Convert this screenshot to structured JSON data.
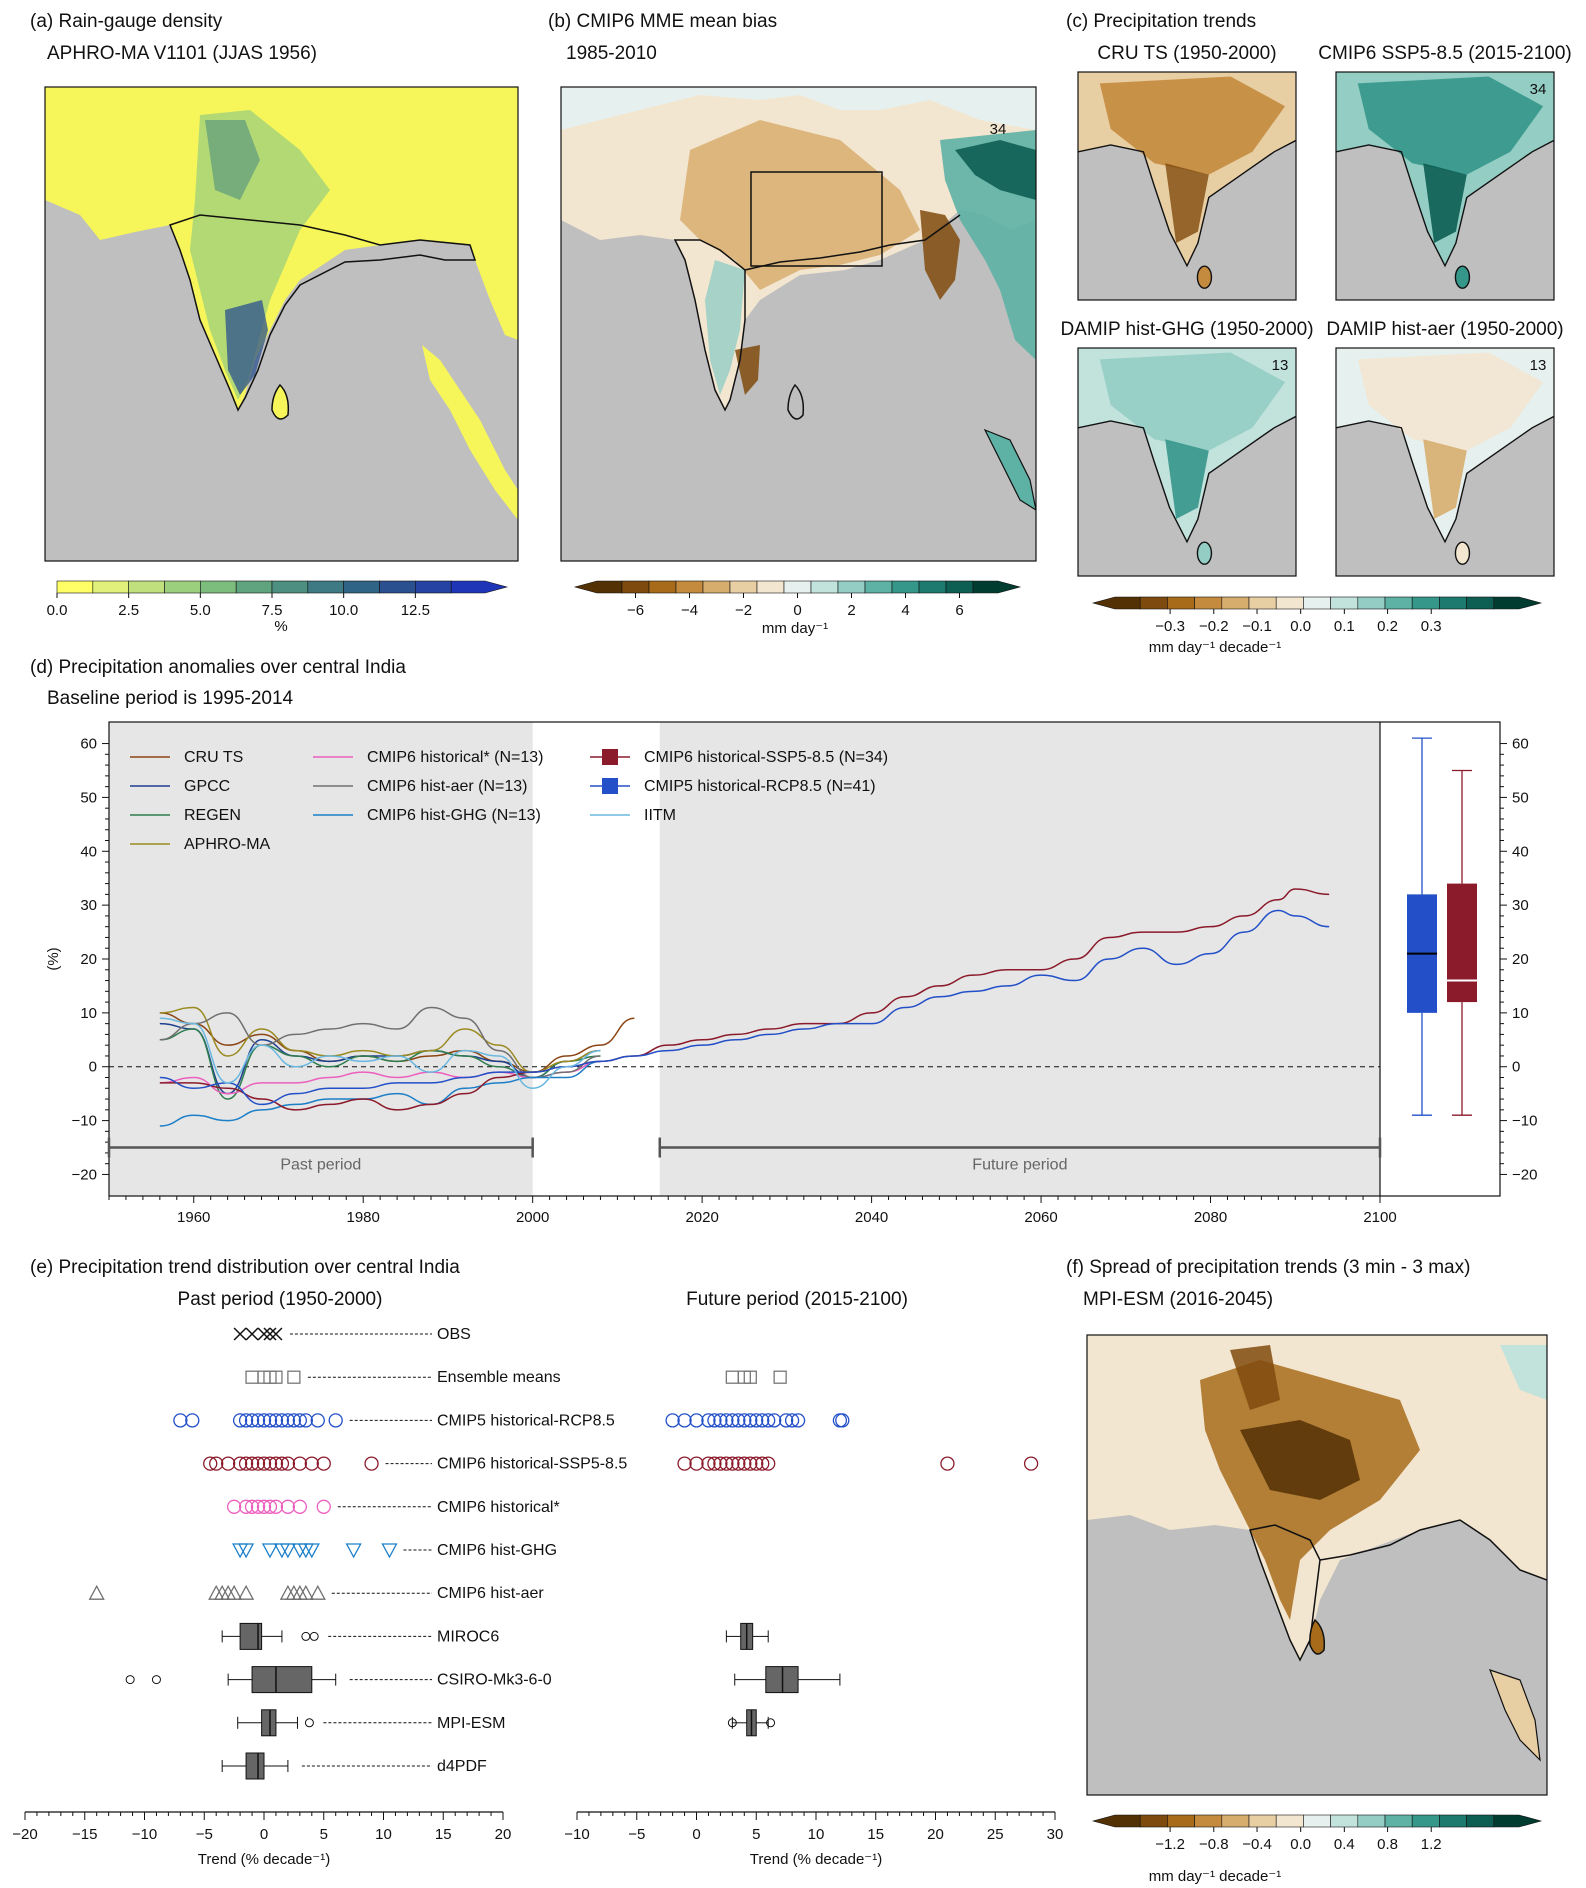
{
  "colors": {
    "yellow_fill": "#f6f65a",
    "land_gray": "#bfbfbf",
    "shade_gray": "#e6e6e6",
    "cmip6": "#8b1a2b",
    "cmip5": "#2350c8",
    "pink": "#ec5fbe",
    "ghg": "#1c7fc8",
    "aer": "#707070"
  },
  "panel_a": {
    "title": "(a) Rain-gauge density",
    "subtitle": "APHRO-MA V1101 (JJAS 1956)",
    "colorbar": {
      "ticks": [
        "0.0",
        "2.5",
        "5.0",
        "7.5",
        "10.0",
        "12.5"
      ],
      "unit": "%",
      "colors": [
        "#ffff66",
        "#e0f07a",
        "#bfe07c",
        "#9ccf7d",
        "#7cbd7d",
        "#5fa47e",
        "#4d8f80",
        "#3d7a84",
        "#306487",
        "#2a508f",
        "#2543a3",
        "#1f35b8"
      ]
    }
  },
  "panel_b": {
    "title": "(b) CMIP6 MME mean bias",
    "subtitle": "1985-2010",
    "label": "34",
    "colorbar": {
      "ticks": [
        "−6",
        "−4",
        "−2",
        "0",
        "2",
        "4",
        "6"
      ],
      "unit": "mm day⁻¹"
    }
  },
  "panel_c": {
    "title": "(c) Precipitation trends",
    "maps": [
      {
        "title": "CRU TS (1950-2000)",
        "label": ""
      },
      {
        "title": "CMIP6 SSP5-8.5 (2015-2100)",
        "label": "34"
      },
      {
        "title": "DAMIP hist-GHG (1950-2000)",
        "label": "13"
      },
      {
        "title": "DAMIP hist-aer (1950-2000)",
        "label": "13"
      }
    ],
    "colorbar": {
      "ticks": [
        "−0.3",
        "−0.2",
        "−0.1",
        "0.0",
        "0.1",
        "0.2",
        "0.3"
      ],
      "unit": "mm day⁻¹ decade⁻¹"
    }
  },
  "diverging_colors": [
    "#543005",
    "#7f4a0d",
    "#a76b1a",
    "#c48a3e",
    "#d7ad6e",
    "#e8cfa3",
    "#f3e6d0",
    "#e6f0ee",
    "#c2e2dc",
    "#93cdc4",
    "#5eb1a5",
    "#35968a",
    "#1d7a6f",
    "#0d5e53",
    "#003c30"
  ],
  "panel_d": {
    "title": "(d) Precipitation anomalies over central India",
    "subtitle": "Baseline period is 1995-2014",
    "ylabel": "(%)",
    "past_label": "Past period",
    "future_label": "Future period",
    "legend": [
      {
        "name": "CRU TS",
        "color": "#8b4513",
        "kind": "line"
      },
      {
        "name": "GPCC",
        "color": "#1f3f8f",
        "kind": "line"
      },
      {
        "name": "REGEN",
        "color": "#2e7d4f",
        "kind": "line"
      },
      {
        "name": "APHRO-MA",
        "color": "#9a8a20",
        "kind": "line"
      },
      {
        "name": "CMIP6 historical* (N=13)",
        "color": "#ec5fbe",
        "kind": "line"
      },
      {
        "name": "CMIP6 hist-aer (N=13)",
        "color": "#707070",
        "kind": "line"
      },
      {
        "name": "CMIP6 hist-GHG (N=13)",
        "color": "#1c7fc8",
        "kind": "line"
      },
      {
        "name": "CMIP6 historical-SSP5-8.5 (N=34)",
        "color": "#8b1a2b",
        "kind": "box"
      },
      {
        "name": "CMIP5 historical-RCP8.5 (N=41)",
        "color": "#2350c8",
        "kind": "box"
      },
      {
        "name": "IITM",
        "color": "#6ab8e0",
        "kind": "line"
      }
    ]
  },
  "panel_e": {
    "title": "(e) Precipitation trend distribution over central India",
    "past_title": "Past period (1950-2000)",
    "future_title": "Future period (2015-2100)",
    "xlabel": "Trend (% decade⁻¹)",
    "rows": [
      "OBS",
      "Ensemble means",
      "CMIP5 historical-RCP8.5",
      "CMIP6 historical-SSP5-8.5",
      "CMIP6 historical*",
      "CMIP6 hist-GHG",
      "CMIP6 hist-aer",
      "MIROC6",
      "CSIRO-Mk3-6-0",
      "MPI-ESM",
      "d4PDF"
    ]
  },
  "panel_f": {
    "title": "(f) Spread of precipitation trends (3 min - 3 max)",
    "subtitle": "MPI-ESM (2016-2045)",
    "colorbar": {
      "ticks": [
        "−1.2",
        "−0.8",
        "−0.4",
        "0.0",
        "0.4",
        "0.8",
        "1.2"
      ],
      "unit": "mm day⁻¹ decade⁻¹"
    }
  },
  "chart_data": [
    {
      "type": "line",
      "panel": "d",
      "xlim": [
        1950,
        2100
      ],
      "ylim": [
        -20,
        60
      ],
      "xticks": [
        1960,
        1980,
        2000,
        2020,
        2040,
        2060,
        2080,
        2100
      ],
      "yticks": [
        -20,
        -10,
        0,
        10,
        20,
        30,
        40,
        50,
        60
      ],
      "shaded_periods": [
        [
          1950,
          2000
        ],
        [
          2015,
          2100
        ]
      ],
      "series": [
        {
          "name": "CRU TS",
          "x": [
            1956,
            1960,
            1964,
            1968,
            1972,
            1976,
            1980,
            1984,
            1988,
            1992,
            1996,
            2000,
            2004,
            2008,
            2012
          ],
          "y": [
            10,
            8,
            4,
            6,
            3,
            1,
            2,
            1,
            2,
            3,
            1,
            -1,
            2,
            4,
            9
          ]
        },
        {
          "name": "GPCC",
          "x": [
            1956,
            1960,
            1964,
            1968,
            1972,
            1976,
            1980,
            1984,
            1988,
            1992,
            1996,
            2000,
            2004,
            2008
          ],
          "y": [
            8,
            7,
            -5,
            5,
            2,
            1,
            2,
            2,
            3,
            2,
            1,
            -2,
            1,
            3
          ]
        },
        {
          "name": "REGEN",
          "x": [
            1956,
            1960,
            1964,
            1968,
            1972,
            1976,
            1980,
            1984,
            1988,
            1992,
            1996,
            2000,
            2004,
            2008
          ],
          "y": [
            5,
            7,
            -6,
            4,
            2,
            0,
            2,
            1,
            3,
            2,
            0,
            -2,
            1,
            2
          ]
        },
        {
          "name": "APHRO-MA",
          "x": [
            1956,
            1960,
            1964,
            1968,
            1972,
            1976,
            1980,
            1984,
            1988,
            1992,
            1996,
            2000,
            2004,
            2008
          ],
          "y": [
            10,
            11,
            2,
            7,
            3,
            2,
            3,
            2,
            3,
            7,
            4,
            -1,
            1,
            3
          ]
        },
        {
          "name": "CMIP6 historical* (N=13)",
          "x": [
            1956,
            1960,
            1964,
            1968,
            1972,
            1976,
            1980,
            1984,
            1988,
            1992,
            1996,
            2000,
            2004,
            2008
          ],
          "y": [
            -3,
            -2,
            -5,
            -3,
            -3,
            -2,
            -1,
            -2,
            -1,
            -2,
            -1,
            -2,
            -1,
            1
          ]
        },
        {
          "name": "CMIP6 hist-aer (N=13)",
          "x": [
            1956,
            1960,
            1964,
            1968,
            1972,
            1976,
            1980,
            1984,
            1988,
            1992,
            1996,
            2000,
            2004,
            2008
          ],
          "y": [
            5,
            8,
            10,
            4,
            6,
            7,
            8,
            7,
            11,
            9,
            3,
            -2,
            -1,
            2
          ]
        },
        {
          "name": "CMIP6 hist-GHG (N=13)",
          "x": [
            1956,
            1960,
            1964,
            1968,
            1972,
            1976,
            1980,
            1984,
            1988,
            1992,
            1996,
            2000,
            2004,
            2008
          ],
          "y": [
            -11,
            -9,
            -10,
            -8,
            -7,
            -6,
            -6,
            -5,
            -7,
            -4,
            -3,
            -2,
            -2,
            1
          ]
        },
        {
          "name": "CMIP6 historical-SSP5-8.5 (N=34)",
          "x": [
            1956,
            1960,
            1964,
            1968,
            1972,
            1976,
            1980,
            1984,
            1988,
            1992,
            1996,
            2000,
            2004,
            2008,
            2012,
            2016,
            2020,
            2024,
            2028,
            2032,
            2036,
            2040,
            2044,
            2048,
            2052,
            2056,
            2060,
            2064,
            2068,
            2072,
            2076,
            2080,
            2084,
            2088,
            2090,
            2094
          ],
          "y": [
            -3,
            -3,
            -4,
            -6,
            -8,
            -7,
            -6,
            -8,
            -7,
            -5,
            -2,
            -1,
            0,
            1,
            2,
            4,
            5,
            6,
            7,
            8,
            8,
            10,
            13,
            15,
            17,
            18,
            18,
            20,
            24,
            25,
            25,
            26,
            28,
            31,
            33,
            32
          ]
        },
        {
          "name": "CMIP5 historical-RCP8.5 (N=41)",
          "x": [
            1956,
            1960,
            1964,
            1968,
            1972,
            1976,
            1980,
            1984,
            1988,
            1992,
            1996,
            2000,
            2004,
            2008,
            2012,
            2016,
            2020,
            2024,
            2028,
            2032,
            2036,
            2040,
            2044,
            2048,
            2052,
            2056,
            2060,
            2064,
            2068,
            2072,
            2076,
            2080,
            2084,
            2088,
            2090,
            2094
          ],
          "y": [
            -2,
            -4,
            -3,
            -7,
            -5,
            -4,
            -4,
            -3,
            -3,
            -2,
            -1,
            -1,
            0,
            1,
            2,
            3,
            4,
            5,
            6,
            7,
            8,
            8,
            11,
            13,
            14,
            15,
            17,
            16,
            20,
            22,
            19,
            21,
            25,
            29,
            28,
            26
          ]
        },
        {
          "name": "IITM",
          "x": [
            1956,
            1960,
            1964,
            1968,
            1972,
            1976,
            1980,
            1984,
            1988,
            1992,
            1996,
            2000,
            2004,
            2008
          ],
          "y": [
            9,
            8,
            -3,
            4,
            0,
            2,
            1,
            2,
            -1,
            3,
            2,
            -4,
            0,
            3
          ]
        }
      ],
      "boxes": [
        {
          "name": "CMIP5 historical-RCP8.5 (N=41)",
          "min": -9,
          "q1": 10,
          "median": 21,
          "q3": 32,
          "max": 61
        },
        {
          "name": "CMIP6 historical-SSP5-8.5 (N=34)",
          "min": -9,
          "q1": 12,
          "median": 16,
          "q3": 34,
          "max": 55
        }
      ]
    },
    {
      "type": "scatter",
      "panel": "e-past",
      "xlim": [
        -20,
        20
      ],
      "xticks": [
        -20,
        -15,
        -10,
        -5,
        0,
        5,
        10,
        15,
        20
      ],
      "rows": {
        "OBS": [
          -2,
          -1,
          0,
          0.5,
          1
        ],
        "Ensemble means": [
          -1,
          0,
          0.5,
          1,
          2.5
        ],
        "CMIP5 historical-RCP8.5": [
          -7,
          -6,
          -2,
          -1.5,
          -1,
          -0.5,
          0,
          0.5,
          1,
          1.5,
          2,
          2.5,
          3,
          3.5,
          4.5,
          6
        ],
        "CMIP6 historical-SSP5-8.5": [
          -4.5,
          -4,
          -3,
          -2,
          -1.5,
          -1,
          -0.5,
          0,
          0.5,
          1,
          1.5,
          2,
          3,
          4,
          5,
          9
        ],
        "CMIP6 historical*": [
          -2.5,
          -1.5,
          -1,
          -0.5,
          0,
          0.5,
          1,
          2,
          3,
          5
        ],
        "CMIP6 hist-GHG": [
          -2,
          -1.5,
          0.5,
          1.5,
          2,
          3,
          3.5,
          4,
          7.5,
          10.5
        ],
        "CMIP6 hist-aer": [
          -14,
          -4,
          -3.5,
          -3,
          -2.5,
          -1.5,
          2,
          2.5,
          3,
          3.5,
          4.5
        ]
      },
      "boxes": {
        "MIROC6": {
          "min": -3.5,
          "q1": -2,
          "median": -0.5,
          "q3": -0.2,
          "max": 1.5,
          "outliers": [
            3.5,
            4.2
          ]
        },
        "CSIRO-Mk3-6-0": {
          "min": -3,
          "q1": -1,
          "median": 1,
          "q3": 4,
          "max": 6,
          "outliers": [
            -11.2,
            -9
          ]
        },
        "MPI-ESM": {
          "min": -2.2,
          "q1": -0.2,
          "median": 0.5,
          "q3": 1,
          "max": 2.8,
          "outliers": [
            3.8
          ]
        },
        "d4PDF": {
          "min": -3.5,
          "q1": -1.5,
          "median": -0.5,
          "q3": 0,
          "max": 2
        }
      }
    },
    {
      "type": "scatter",
      "panel": "e-future",
      "xlim": [
        -10,
        30
      ],
      "xticks": [
        -10,
        -5,
        0,
        5,
        10,
        15,
        20,
        25,
        30
      ],
      "rows": {
        "Ensemble means": [
          3,
          4,
          4.5,
          7
        ],
        "CMIP5 historical-RCP8.5": [
          -2,
          -1,
          0,
          1,
          1.5,
          2,
          2.5,
          3,
          3.5,
          4,
          4.5,
          5,
          5.5,
          6,
          6.5,
          7.5,
          8,
          8.5,
          12,
          12.2
        ],
        "CMIP6 historical-SSP5-8.5": [
          -1,
          0,
          1,
          1.5,
          2,
          2.5,
          3,
          3.5,
          4,
          4.5,
          5,
          5.5,
          6,
          21,
          28
        ]
      },
      "boxes": {
        "MIROC6": {
          "min": 2.5,
          "q1": 3.7,
          "median": 4.2,
          "q3": 4.7,
          "max": 6
        },
        "CSIRO-Mk3-6-0": {
          "min": 3.2,
          "q1": 5.8,
          "median": 7.2,
          "q3": 8.5,
          "max": 12
        },
        "MPI-ESM": {
          "min": 3,
          "q1": 4.2,
          "median": 4.6,
          "q3": 5,
          "max": 6,
          "outliers": [
            3,
            6.2
          ]
        }
      }
    }
  ]
}
